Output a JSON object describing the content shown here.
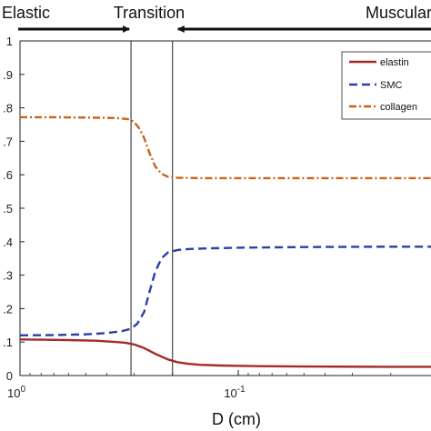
{
  "chart_data": {
    "type": "line",
    "xlabel": "D (cm)",
    "ylabel": "",
    "x_scale": "log",
    "x_reversed": true,
    "xlim": [
      1,
      0.01
    ],
    "ylim": [
      0,
      1
    ],
    "grid": false,
    "legend_position": "top-right",
    "x_tick_labels": [
      {
        "value": 1,
        "base": "10",
        "exp": "0"
      },
      {
        "value": 0.1,
        "base": "10",
        "exp": "-1"
      }
    ],
    "y_ticks": [
      0,
      0.1,
      0.2,
      0.3,
      0.4,
      0.5,
      0.6,
      0.7,
      0.8,
      0.9,
      1
    ],
    "y_tick_labels": [
      "0",
      ".1",
      ".2",
      ".3",
      ".4",
      ".5",
      ".6",
      ".7",
      ".8",
      ".9",
      "1"
    ],
    "vertical_lines": [
      0.31,
      0.2
    ],
    "regions": [
      {
        "label": "Elastic",
        "arrow": "right",
        "x_from": 1,
        "x_to": 0.31
      },
      {
        "label": "Transition",
        "arrow": "none"
      },
      {
        "label": "Muscular",
        "arrow": "left",
        "x_from": 0.2,
        "x_to": 0.01
      }
    ],
    "series": [
      {
        "name": "elastin",
        "color": "#a52a2a",
        "style": "solid",
        "x": [
          1,
          0.8,
          0.6,
          0.45,
          0.38,
          0.33,
          0.3,
          0.27,
          0.24,
          0.21,
          0.19,
          0.17,
          0.15,
          0.12,
          0.08,
          0.05,
          0.02,
          0.01
        ],
        "y": [
          0.108,
          0.107,
          0.106,
          0.104,
          0.101,
          0.098,
          0.093,
          0.082,
          0.065,
          0.048,
          0.04,
          0.035,
          0.032,
          0.03,
          0.028,
          0.027,
          0.026,
          0.026
        ]
      },
      {
        "name": "SMC",
        "color": "#2b3fa8",
        "style": "dashed",
        "x": [
          1,
          0.7,
          0.5,
          0.4,
          0.34,
          0.31,
          0.29,
          0.27,
          0.255,
          0.24,
          0.225,
          0.21,
          0.19,
          0.17,
          0.14,
          0.1,
          0.05,
          0.02,
          0.01
        ],
        "y": [
          0.12,
          0.121,
          0.123,
          0.127,
          0.133,
          0.14,
          0.155,
          0.19,
          0.25,
          0.31,
          0.35,
          0.368,
          0.375,
          0.378,
          0.38,
          0.382,
          0.384,
          0.385,
          0.385
        ]
      },
      {
        "name": "collagen",
        "color": "#c8641e",
        "style": "dashdot",
        "x": [
          1,
          0.7,
          0.5,
          0.4,
          0.35,
          0.32,
          0.3,
          0.285,
          0.27,
          0.255,
          0.24,
          0.225,
          0.21,
          0.19,
          0.15,
          0.1,
          0.05,
          0.02,
          0.01
        ],
        "y": [
          0.772,
          0.772,
          0.771,
          0.77,
          0.769,
          0.766,
          0.758,
          0.74,
          0.71,
          0.665,
          0.625,
          0.603,
          0.594,
          0.591,
          0.59,
          0.59,
          0.59,
          0.59,
          0.59
        ]
      }
    ]
  }
}
